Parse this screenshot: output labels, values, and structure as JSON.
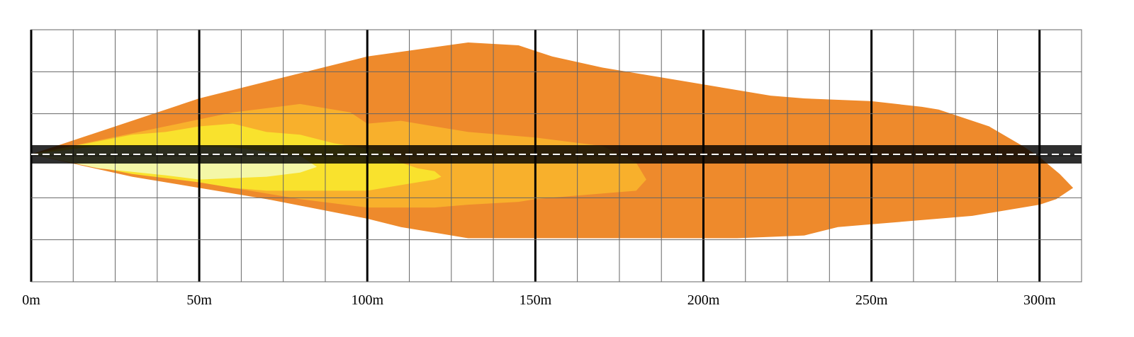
{
  "chart_data": {
    "type": "area",
    "title": "",
    "xlabel": "",
    "ylabel": "",
    "x_unit": "m",
    "xlim": [
      0,
      312.5
    ],
    "x_ticks": [
      "0m",
      "50m",
      "100m",
      "150m",
      "200m",
      "250m",
      "300m"
    ],
    "x_tick_values": [
      0,
      50,
      100,
      150,
      200,
      250,
      300
    ],
    "x_grid_step": 12.5,
    "grid": true,
    "road": {
      "center_line": "dashed",
      "color": "#000000"
    },
    "series": [
      {
        "color": "#EE8A2C",
        "x": [
          0,
          50,
          100,
          130,
          145,
          155,
          170,
          200,
          220,
          230,
          250,
          265,
          270,
          285,
          295,
          300,
          306,
          310,
          305,
          300,
          280,
          250,
          240,
          230,
          210,
          180,
          160,
          140,
          130,
          110,
          100,
          70,
          50,
          30,
          0
        ],
        "upper": [
          0,
          2.0,
          3.5,
          4.0,
          3.9,
          3.5,
          3.1,
          2.5,
          2.1,
          2.0,
          1.9,
          1.7,
          1.6,
          1.0,
          0.3,
          -0.1,
          -0.7,
          -1.2,
          -1.6,
          -1.8,
          -2.2,
          -2.5,
          -2.6,
          -2.9,
          -3.0,
          -3.0,
          -3.0,
          -3.0,
          -3.0,
          -2.6,
          -2.3,
          -1.6,
          -1.2,
          -0.8,
          0
        ],
        "lower": null
      },
      {
        "color": "#F8B02C",
        "x": [
          0,
          40,
          60,
          80,
          95,
          100,
          110,
          130,
          150,
          170,
          180,
          183,
          180,
          170,
          150,
          145,
          130,
          120,
          100,
          80,
          60,
          50,
          0
        ],
        "upper": [
          0,
          1.0,
          1.5,
          1.8,
          1.5,
          1.1,
          1.2,
          0.8,
          0.6,
          0.3,
          -0.3,
          -0.9,
          -1.3,
          -1.4,
          -1.6,
          -1.7,
          -1.8,
          -1.9,
          -1.9,
          -1.6,
          -1.2,
          -1.0,
          0
        ],
        "lower": null
      },
      {
        "color": "#F9E22D",
        "x": [
          0,
          30,
          40,
          50,
          60,
          70,
          80,
          90,
          100,
          105,
          110,
          115,
          120,
          122,
          120,
          110,
          100,
          90,
          80,
          70,
          60,
          50,
          30,
          0
        ],
        "upper": [
          0,
          0.7,
          0.8,
          1.0,
          1.1,
          0.8,
          0.7,
          0.4,
          0.2,
          0.1,
          -0.3,
          -0.5,
          -0.6,
          -0.8,
          -0.9,
          -1.1,
          -1.3,
          -1.3,
          -1.3,
          -1.3,
          -1.2,
          -1.0,
          -0.7,
          0
        ],
        "lower": null
      },
      {
        "color": "#F4F7A7",
        "x": [
          0,
          20,
          40,
          60,
          70,
          80,
          85,
          80,
          70,
          60,
          50,
          40,
          20,
          0
        ],
        "upper": [
          0,
          0.3,
          0.3,
          0.25,
          0.1,
          -0.05,
          -0.45,
          -0.65,
          -0.8,
          -0.85,
          -0.9,
          -0.75,
          -0.5,
          0
        ],
        "lower": null
      }
    ]
  }
}
